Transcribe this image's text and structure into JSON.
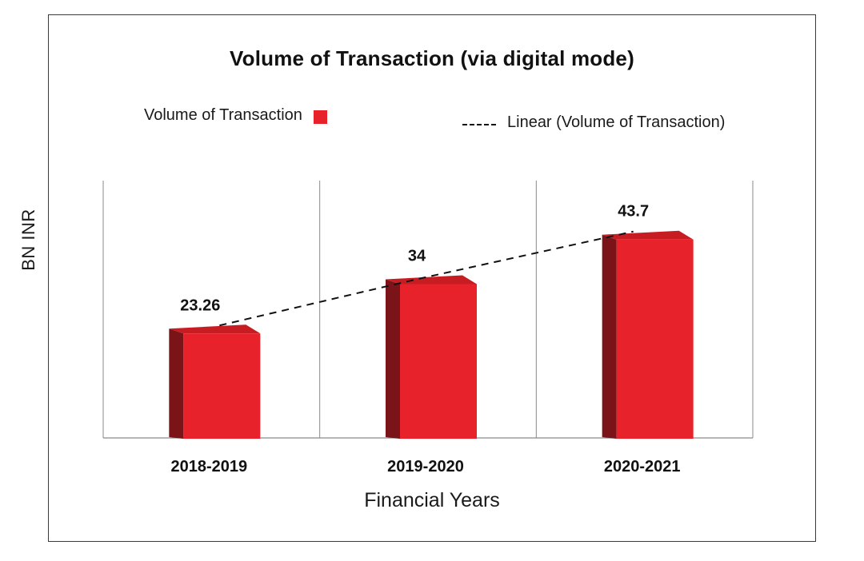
{
  "chart_data": {
    "type": "bar",
    "title": "Volume of Transaction (via digital mode)",
    "xlabel": "Financial Years",
    "ylabel": "BN INR",
    "categories": [
      "2018-2019",
      "2019-2020",
      "2020-2021"
    ],
    "series": [
      {
        "name": "Volume of Transaction",
        "values": [
          23.26,
          34,
          43.7
        ],
        "color": "#e8222a",
        "side_color": "#7a1418",
        "data_labels": [
          "23.26",
          "34",
          "43.7"
        ]
      }
    ],
    "trendline": {
      "name": "Linear (Volume of Transaction)",
      "type": "linear",
      "style": "dashed",
      "color": "#111111"
    },
    "ylim": [
      0,
      56
    ],
    "grid": "vertical category separators",
    "legend": "top",
    "bar_style": "3d"
  }
}
